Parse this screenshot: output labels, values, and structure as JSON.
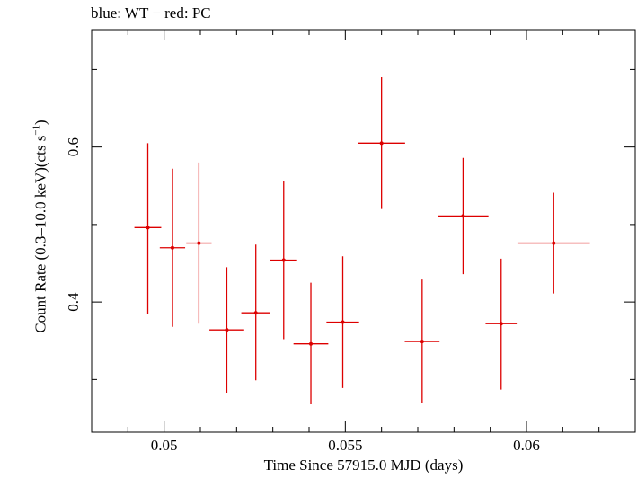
{
  "chart_data": {
    "type": "scatter",
    "title": "blue: WT − red: PC",
    "xlabel": "Time Since 57915.0 MJD (days)",
    "ylabel_main": "Count Rate (0.3–10.0 keV)(cts s",
    "ylabel_sup": "−1",
    "ylabel_close": ")",
    "xlim": [
      0.048,
      0.063
    ],
    "ylim": [
      0.232,
      0.7515
    ],
    "xticks": [
      0.05,
      0.055,
      0.06
    ],
    "xtick_labels": [
      "0.05",
      "0.055",
      "0.06"
    ],
    "xminor": [
      0.049,
      0.051,
      0.052,
      0.053,
      0.054,
      0.056,
      0.057,
      0.058,
      0.059,
      0.061,
      0.062
    ],
    "yticks": [
      0.4,
      0.6
    ],
    "ytick_labels": [
      "0.4",
      "0.6"
    ],
    "yminor": [
      0.3,
      0.5,
      0.7
    ],
    "series": [
      {
        "color": "#dd0000",
        "points": [
          {
            "x": 0.04955,
            "xerr": 0.00037,
            "y": 0.496,
            "ylo": 0.385,
            "yhi": 0.605
          },
          {
            "x": 0.05023,
            "xerr": 0.00035,
            "y": 0.47,
            "ylo": 0.368,
            "yhi": 0.572
          },
          {
            "x": 0.05096,
            "xerr": 0.00035,
            "y": 0.476,
            "ylo": 0.372,
            "yhi": 0.58
          },
          {
            "x": 0.05173,
            "xerr": 0.00048,
            "y": 0.364,
            "ylo": 0.283,
            "yhi": 0.445
          },
          {
            "x": 0.05253,
            "xerr": 0.0004,
            "y": 0.386,
            "ylo": 0.299,
            "yhi": 0.474
          },
          {
            "x": 0.0533,
            "xerr": 0.00037,
            "y": 0.454,
            "ylo": 0.352,
            "yhi": 0.556
          },
          {
            "x": 0.05405,
            "xerr": 0.00048,
            "y": 0.346,
            "ylo": 0.268,
            "yhi": 0.425
          },
          {
            "x": 0.05493,
            "xerr": 0.00045,
            "y": 0.374,
            "ylo": 0.289,
            "yhi": 0.459
          },
          {
            "x": 0.056,
            "xerr": 0.00065,
            "y": 0.605,
            "ylo": 0.52,
            "yhi": 0.69
          },
          {
            "x": 0.05712,
            "xerr": 0.00048,
            "y": 0.349,
            "ylo": 0.27,
            "yhi": 0.429
          },
          {
            "x": 0.05825,
            "xerr": 0.0007,
            "y": 0.511,
            "ylo": 0.436,
            "yhi": 0.586
          },
          {
            "x": 0.0593,
            "xerr": 0.00043,
            "y": 0.372,
            "ylo": 0.287,
            "yhi": 0.456
          },
          {
            "x": 0.06075,
            "xerr": 0.001,
            "y": 0.476,
            "ylo": 0.411,
            "yhi": 0.541
          }
        ]
      }
    ]
  }
}
